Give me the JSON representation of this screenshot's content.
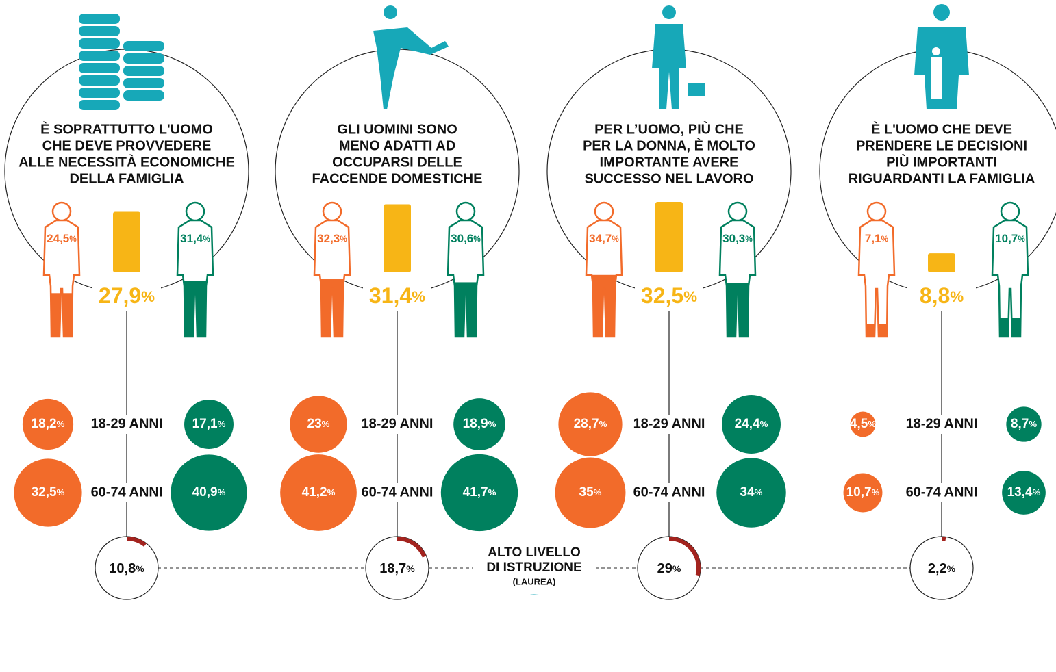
{
  "chart_data": {
    "type": "infographic",
    "unit": "%",
    "age_labels": [
      "18-29 ANNI",
      "60-74 ANNI"
    ],
    "education_label": [
      "ALTO LIVELLO",
      "DI ISTRUZIONE"
    ],
    "education_sublabel": "(LAUREA)",
    "colors": {
      "women": "#f26b2a",
      "men": "#00805e",
      "total": "#f7b516",
      "education": "#a3231e",
      "icon": "#17a8b8"
    },
    "panels": [
      {
        "title": [
          "È SOPRATTUTTO L'UOMO",
          "CHE DEVE PROVVEDERE",
          "ALLE NECESSITÀ ECONOMICHE",
          "DELLA FAMIGLIA"
        ],
        "women": {
          "value": 24.5,
          "label": "24,5"
        },
        "total": {
          "value": 27.9,
          "label": "27,9"
        },
        "men": {
          "value": 31.4,
          "label": "31,4"
        },
        "women_age": [
          {
            "value": 18.2,
            "label": "18,2"
          },
          {
            "value": 32.5,
            "label": "32,5"
          }
        ],
        "men_age": [
          {
            "value": 17.1,
            "label": "17,1"
          },
          {
            "value": 40.9,
            "label": "40,9"
          }
        ],
        "education": {
          "value": 10.8,
          "label": "10,8"
        }
      },
      {
        "title": [
          "GLI UOMINI SONO",
          "MENO ADATTI AD",
          "OCCUPARSI DELLE",
          "FACCENDE DOMESTICHE"
        ],
        "women": {
          "value": 32.3,
          "label": "32,3"
        },
        "total": {
          "value": 31.4,
          "label": "31,4"
        },
        "men": {
          "value": 30.6,
          "label": "30,6"
        },
        "women_age": [
          23,
          {
            "value": 41.2,
            "label": "41,2"
          }
        ],
        "men_age": [
          {
            "value": 18.9,
            "label": "18,9"
          },
          {
            "value": 41.7,
            "label": "41,7"
          }
        ],
        "education": {
          "value": 18.7,
          "label": "18,7"
        }
      },
      {
        "title": [
          "PER L’UOMO, PIÙ CHE",
          "PER LA DONNA, È MOLTO",
          "IMPORTANTE AVERE",
          "SUCCESSO NEL LAVORO"
        ],
        "women": {
          "value": 34.7,
          "label": "34,7"
        },
        "total": {
          "value": 32.5,
          "label": "32,5"
        },
        "men": {
          "value": 30.3,
          "label": "30,3"
        },
        "women_age": [
          {
            "value": 28.7,
            "label": "28,7"
          },
          35
        ],
        "men_age": [
          {
            "value": 24.4,
            "label": "24,4"
          },
          34
        ],
        "education": 29
      },
      {
        "title": [
          "È L'UOMO CHE DEVE",
          "PRENDERE LE DECISIONI",
          "PIÙ IMPORTANTI",
          "RIGUARDANTI LA FAMIGLIA"
        ],
        "women": {
          "value": 7.1,
          "label": "7,1"
        },
        "total": {
          "value": 8.8,
          "label": "8,8"
        },
        "men": {
          "value": 10.7,
          "label": "10,7"
        },
        "women_age": [
          {
            "value": 4.5,
            "label": "4,5"
          },
          {
            "value": 10.7,
            "label": "10,7"
          }
        ],
        "men_age": [
          {
            "value": 8.7,
            "label": "8,7"
          },
          {
            "value": 13.4,
            "label": "13,4"
          }
        ],
        "education": {
          "value": 2.2,
          "label": "2,2"
        }
      }
    ]
  }
}
